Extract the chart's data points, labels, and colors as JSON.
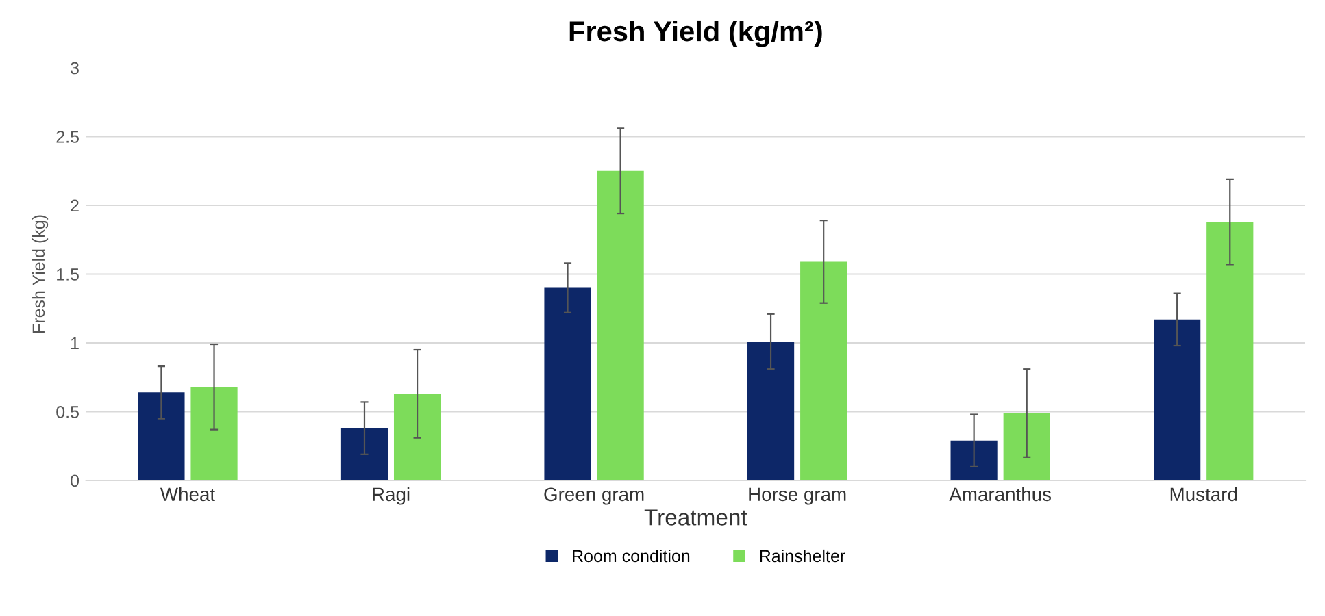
{
  "chart_data": {
    "type": "bar",
    "title": "Fresh Yield (kg/m²)",
    "xlabel": "Treatment",
    "ylabel": "Fresh Yield (kg)",
    "categories": [
      "Wheat",
      "Ragi",
      "Green gram",
      "Horse gram",
      "Amaranthus",
      "Mustard"
    ],
    "series": [
      {
        "name": "Room condition",
        "color": "#0d2768",
        "values": [
          0.64,
          0.38,
          1.4,
          1.01,
          0.29,
          1.17
        ],
        "errors": [
          0.19,
          0.19,
          0.18,
          0.2,
          0.19,
          0.19
        ]
      },
      {
        "name": "Rainshelter",
        "color": "#7ddc5a",
        "values": [
          0.68,
          0.63,
          2.25,
          1.59,
          0.49,
          1.88
        ],
        "errors": [
          0.31,
          0.32,
          0.31,
          0.3,
          0.32,
          0.31
        ]
      }
    ],
    "ylim": [
      0,
      3
    ],
    "yticks": [
      0,
      0.5,
      1,
      1.5,
      2,
      2.5,
      3
    ],
    "grid": "y",
    "legend": "bottom"
  }
}
